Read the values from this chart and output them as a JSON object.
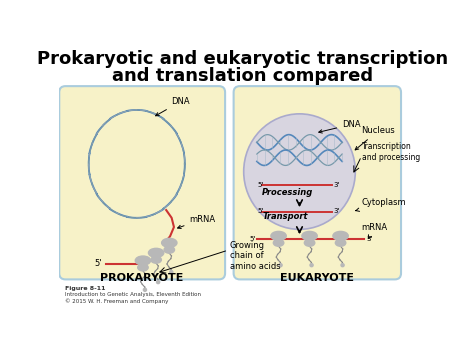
{
  "title_line1": "Prokaryotic and eukaryotic transcription",
  "title_line2": "and translation compared",
  "title_fontsize": 13,
  "title_fontweight": "bold",
  "bg_color": "#ffffff",
  "figure_caption_line1": "Figure 8-11",
  "figure_caption_line2": "Introduction to Genetic Analysis, Eleventh Edition",
  "figure_caption_line3": "© 2015 W. H. Freeman and Company",
  "prokaryote_label": "PROKARYOTE",
  "eukaryote_label": "EUKARYOTE",
  "cell_color": "#f7f2c8",
  "cell_border_color": "#aaccdd",
  "nucleus_color": "#d8d5e0",
  "nucleus_border": "#aaaacc",
  "dna_blue": "#5588bb",
  "dna_blue2": "#4477aa",
  "dna_red": "#cc3333",
  "mRNA_color": "#cc3333",
  "ribosome_color": "#b8b8b8",
  "chain_color": "#888888",
  "arrow_color": "#111111",
  "label_fontsize": 6,
  "small_fontsize": 5,
  "caption_fontsize": 4
}
